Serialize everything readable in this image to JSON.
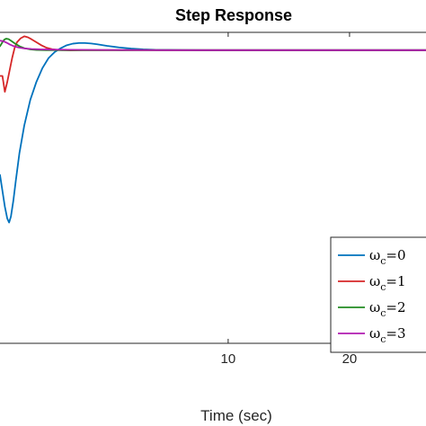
{
  "chart_data": {
    "type": "line",
    "title": "Step Response",
    "xlabel": "Time (sec)",
    "ylabel": "",
    "xlim": [
      -8.8,
      26.3
    ],
    "ylim": [
      -1.05,
      0.52
    ],
    "x_ticks": [
      {
        "value": 10,
        "label": "10"
      },
      {
        "value": 20,
        "label": "20"
      }
    ],
    "grid": false,
    "legend_position": "bottom-right",
    "series": [
      {
        "name_main": "ω",
        "name_sub": "c",
        "name_rest": "=0",
        "color": "#0072BD",
        "x": [
          -8.8,
          -8.4,
          -8.2,
          -8.05,
          -7.9,
          -7.7,
          -7.5,
          -7.2,
          -6.8,
          -6.3,
          -5.8,
          -5.3,
          -4.8,
          -4.3,
          -3.8,
          -3.3,
          -2.8,
          -2.3,
          -1.8,
          -1.3,
          -0.8,
          0.0,
          1.0,
          2.0,
          3.0,
          4.0,
          6.0,
          8.0,
          10.0,
          14.0,
          20.0,
          26.3
        ],
        "y": [
          -0.2,
          -0.36,
          -0.42,
          -0.44,
          -0.41,
          -0.33,
          -0.23,
          -0.09,
          0.05,
          0.18,
          0.27,
          0.34,
          0.39,
          0.42,
          0.44,
          0.455,
          0.463,
          0.466,
          0.466,
          0.464,
          0.46,
          0.452,
          0.444,
          0.438,
          0.434,
          0.432,
          0.431,
          0.43,
          0.43,
          0.43,
          0.43,
          0.43
        ]
      },
      {
        "name_main": "ω",
        "name_sub": "c",
        "name_rest": "=1",
        "color": "#D62728",
        "x": [
          -8.8,
          -8.6,
          -8.4,
          -8.2,
          -8.0,
          -7.8,
          -7.6,
          -7.4,
          -7.1,
          -6.8,
          -6.5,
          -6.2,
          -5.8,
          -5.4,
          -5.0,
          -4.5,
          -4.0,
          -3.0,
          -2.0,
          0.0,
          5.0,
          10.0,
          20.0,
          26.3
        ],
        "y": [
          0.3,
          0.3,
          0.22,
          0.27,
          0.33,
          0.39,
          0.44,
          0.47,
          0.49,
          0.5,
          0.495,
          0.485,
          0.47,
          0.455,
          0.443,
          0.435,
          0.431,
          0.429,
          0.43,
          0.43,
          0.43,
          0.43,
          0.43,
          0.43
        ]
      },
      {
        "name_main": "ω",
        "name_sub": "c",
        "name_rest": "=2",
        "color": "#228B22",
        "x": [
          -8.8,
          -8.6,
          -8.45,
          -8.3,
          -8.1,
          -7.9,
          -7.6,
          -7.2,
          -6.8,
          -6.3,
          -5.8,
          -5.0,
          -4.0,
          -2.0,
          0.0,
          5.0,
          10.0,
          20.0,
          26.3
        ],
        "y": [
          0.45,
          0.47,
          0.483,
          0.488,
          0.486,
          0.478,
          0.465,
          0.45,
          0.44,
          0.434,
          0.431,
          0.43,
          0.43,
          0.43,
          0.43,
          0.43,
          0.43,
          0.43,
          0.43
        ]
      },
      {
        "name_main": "ω",
        "name_sub": "c",
        "name_rest": "=3",
        "color": "#B01BB0",
        "x": [
          -8.8,
          -8.6,
          -8.4,
          -8.2,
          -8.0,
          -7.7,
          -7.3,
          -6.8,
          -6.2,
          -5.5,
          -4.5,
          -3.0,
          0.0,
          5.0,
          10.0,
          20.0,
          26.3
        ],
        "y": [
          0.478,
          0.476,
          0.472,
          0.466,
          0.459,
          0.451,
          0.444,
          0.439,
          0.436,
          0.434,
          0.433,
          0.432,
          0.431,
          0.43,
          0.43,
          0.43,
          0.43
        ]
      }
    ]
  }
}
